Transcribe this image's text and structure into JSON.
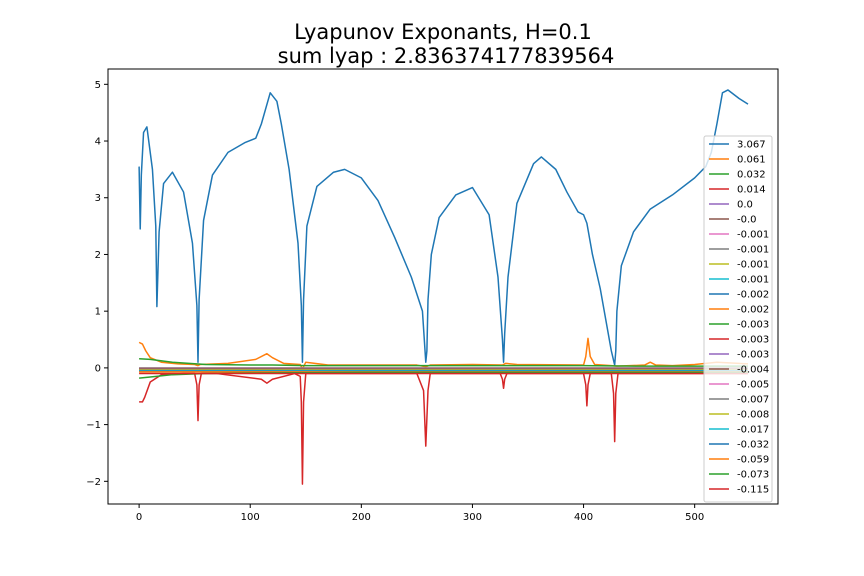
{
  "chart_data": {
    "type": "line",
    "title": "Lyapunov Exponants, H=0.1",
    "subtitle": "sum lyap : 2.836374177839564",
    "xlabel": "",
    "ylabel": "",
    "xlim": [
      -28,
      575
    ],
    "ylim": [
      -2.4,
      5.27
    ],
    "xticks": [
      0,
      100,
      200,
      300,
      400,
      500
    ],
    "yticks": [
      -2,
      -1,
      0,
      1,
      2,
      3,
      4,
      5
    ],
    "grid": false,
    "legend_position": "right",
    "series": [
      {
        "name": "3.067",
        "color": "#1f77b4",
        "x": [
          0,
          1,
          2,
          4,
          7,
          12,
          15,
          16,
          18,
          22,
          30,
          40,
          48,
          52,
          53,
          54,
          58,
          66,
          80,
          95,
          105,
          110,
          118,
          124,
          128,
          135,
          143,
          146,
          147,
          148,
          151,
          160,
          175,
          185,
          200,
          215,
          230,
          245,
          255,
          258,
          259,
          260,
          263,
          270,
          285,
          300,
          315,
          323,
          327,
          328,
          329,
          332,
          340,
          355,
          362,
          375,
          385,
          395,
          400,
          403,
          408,
          415,
          425,
          428,
          429,
          430,
          434,
          445,
          460,
          480,
          500,
          510,
          515,
          520,
          525,
          530,
          540,
          548
        ],
        "y": [
          3.55,
          2.45,
          3.4,
          4.15,
          4.25,
          3.5,
          2.5,
          1.08,
          2.4,
          3.25,
          3.45,
          3.1,
          2.2,
          1.1,
          0.1,
          1.2,
          2.6,
          3.4,
          3.8,
          3.97,
          4.05,
          4.3,
          4.85,
          4.7,
          4.3,
          3.5,
          2.2,
          1.1,
          0.1,
          1.2,
          2.5,
          3.2,
          3.45,
          3.5,
          3.35,
          2.95,
          2.3,
          1.6,
          1.0,
          0.1,
          0.3,
          1.2,
          2.0,
          2.65,
          3.05,
          3.18,
          2.7,
          1.6,
          0.5,
          0.1,
          0.6,
          1.6,
          2.9,
          3.6,
          3.72,
          3.5,
          3.1,
          2.75,
          2.7,
          2.55,
          2.0,
          1.4,
          0.3,
          0.05,
          0.3,
          1.0,
          1.8,
          2.4,
          2.8,
          3.05,
          3.35,
          3.55,
          3.8,
          4.3,
          4.85,
          4.9,
          4.75,
          4.65
        ]
      },
      {
        "name": "0.061",
        "color": "#ff7f0e",
        "x": [
          0,
          3,
          6,
          10,
          20,
          35,
          50,
          53,
          55,
          80,
          105,
          115,
          120,
          130,
          145,
          147,
          150,
          170,
          250,
          258,
          262,
          300,
          327,
          330,
          340,
          400,
          402,
          404,
          406,
          410,
          425,
          430,
          455,
          460,
          465,
          480,
          500,
          520,
          548
        ],
        "y": [
          0.45,
          0.42,
          0.3,
          0.18,
          0.1,
          0.07,
          0.06,
          0.04,
          0.06,
          0.08,
          0.15,
          0.25,
          0.18,
          0.08,
          0.06,
          -0.02,
          0.1,
          0.05,
          0.05,
          0.02,
          0.05,
          0.06,
          0.05,
          0.08,
          0.06,
          0.05,
          0.2,
          0.52,
          0.2,
          0.06,
          0.04,
          0.03,
          0.05,
          0.1,
          0.05,
          0.04,
          0.06,
          0.1,
          0.07
        ]
      },
      {
        "name": "0.032",
        "color": "#2ca02c",
        "x": [
          0,
          10,
          30,
          60,
          100,
          120,
          150,
          200,
          300,
          400,
          450,
          500,
          548
        ],
        "y": [
          0.16,
          0.15,
          0.1,
          0.06,
          0.05,
          0.05,
          0.04,
          0.04,
          0.04,
          0.04,
          0.03,
          0.03,
          0.03
        ]
      },
      {
        "name": "0.014",
        "color": "#d62728",
        "x": [
          0,
          3,
          5,
          10,
          20,
          40,
          50,
          52,
          53,
          54,
          56,
          70,
          110,
          115,
          120,
          140,
          145,
          146,
          147,
          148,
          150,
          170,
          250,
          256,
          258,
          260,
          262,
          300,
          325,
          327,
          328,
          329,
          331,
          360,
          400,
          402,
          403,
          404,
          406,
          425,
          427,
          428,
          429,
          431,
          450,
          500,
          548
        ],
        "y": [
          -0.6,
          -0.6,
          -0.52,
          -0.25,
          -0.12,
          -0.1,
          -0.1,
          -0.3,
          -0.93,
          -0.3,
          -0.1,
          -0.1,
          -0.2,
          -0.27,
          -0.2,
          -0.1,
          -0.15,
          -0.6,
          -2.05,
          -0.6,
          -0.1,
          -0.1,
          -0.1,
          -0.4,
          -1.38,
          -0.4,
          -0.1,
          -0.1,
          -0.1,
          -0.2,
          -0.36,
          -0.2,
          -0.1,
          -0.1,
          -0.1,
          -0.3,
          -0.67,
          -0.3,
          -0.1,
          -0.1,
          -0.45,
          -1.3,
          -0.45,
          -0.1,
          -0.1,
          -0.1,
          -0.1
        ]
      },
      {
        "name": "0.0",
        "color": "#9467bd",
        "x": [
          0,
          548
        ],
        "y": [
          0.0,
          0.0
        ]
      },
      {
        "name": "-0.0",
        "color": "#8c564b",
        "x": [
          0,
          548
        ],
        "y": [
          -0.01,
          -0.01
        ]
      },
      {
        "name": "-0.001",
        "color": "#e377c2",
        "x": [
          0,
          548
        ],
        "y": [
          -0.01,
          -0.01
        ]
      },
      {
        "name": "-0.001",
        "color": "#7f7f7f",
        "x": [
          0,
          548
        ],
        "y": [
          -0.01,
          -0.01
        ]
      },
      {
        "name": "-0.001",
        "color": "#bcbd22",
        "x": [
          0,
          548
        ],
        "y": [
          -0.01,
          -0.01
        ]
      },
      {
        "name": "-0.001",
        "color": "#17becf",
        "x": [
          0,
          548
        ],
        "y": [
          -0.01,
          -0.01
        ]
      },
      {
        "name": "-0.002",
        "color": "#1f77b4",
        "x": [
          0,
          548
        ],
        "y": [
          -0.01,
          -0.01
        ]
      },
      {
        "name": "-0.002",
        "color": "#ff7f0e",
        "x": [
          0,
          548
        ],
        "y": [
          -0.01,
          -0.01
        ]
      },
      {
        "name": "-0.003",
        "color": "#2ca02c",
        "x": [
          0,
          548
        ],
        "y": [
          -0.02,
          -0.02
        ]
      },
      {
        "name": "-0.003",
        "color": "#d62728",
        "x": [
          0,
          548
        ],
        "y": [
          -0.02,
          -0.02
        ]
      },
      {
        "name": "-0.003",
        "color": "#9467bd",
        "x": [
          0,
          548
        ],
        "y": [
          -0.02,
          -0.02
        ]
      },
      {
        "name": "-0.004",
        "color": "#8c564b",
        "x": [
          0,
          548
        ],
        "y": [
          -0.02,
          -0.02
        ]
      },
      {
        "name": "-0.005",
        "color": "#e377c2",
        "x": [
          0,
          548
        ],
        "y": [
          -0.03,
          -0.03
        ]
      },
      {
        "name": "-0.007",
        "color": "#7f7f7f",
        "x": [
          0,
          548
        ],
        "y": [
          -0.03,
          -0.03
        ]
      },
      {
        "name": "-0.008",
        "color": "#bcbd22",
        "x": [
          0,
          548
        ],
        "y": [
          -0.04,
          -0.04
        ]
      },
      {
        "name": "-0.017",
        "color": "#17becf",
        "x": [
          0,
          548
        ],
        "y": [
          -0.05,
          -0.05
        ]
      },
      {
        "name": "-0.032",
        "color": "#1f77b4",
        "x": [
          0,
          548
        ],
        "y": [
          -0.06,
          -0.06
        ]
      },
      {
        "name": "-0.059",
        "color": "#ff7f0e",
        "x": [
          0,
          548
        ],
        "y": [
          -0.07,
          -0.07
        ]
      },
      {
        "name": "-0.073",
        "color": "#2ca02c",
        "x": [
          0,
          10,
          30,
          60,
          100,
          200,
          300,
          400,
          500,
          548
        ],
        "y": [
          -0.18,
          -0.16,
          -0.12,
          -0.1,
          -0.09,
          -0.08,
          -0.08,
          -0.08,
          -0.08,
          -0.08
        ]
      },
      {
        "name": "-0.115",
        "color": "#d62728",
        "x": [
          0,
          548
        ],
        "y": [
          -0.1,
          -0.1
        ]
      }
    ]
  }
}
